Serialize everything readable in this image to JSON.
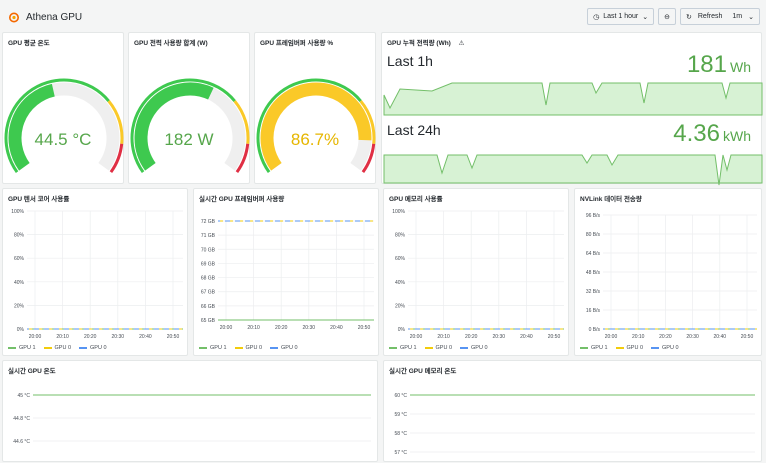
{
  "header": {
    "title": "Athena GPU",
    "time_range": "Last 1 hour",
    "refresh_label": "Refresh",
    "refresh_interval": "1m"
  },
  "colors": {
    "green": "#56a64b",
    "green_fill": "#d7f2d4",
    "yellow": "#f2cc0c",
    "red": "#e02f44",
    "gpu1": "#73bf69",
    "gpu0a": "#f2cc0c",
    "gpu0b": "#5794f2"
  },
  "gauges": [
    {
      "title": "GPU 평균 온도",
      "value_text": "44.5 °C",
      "fraction": 0.45,
      "color": "#3ec94f"
    },
    {
      "title": "GPU 전력 사용량 합계 (W)",
      "value_text": "182 W",
      "fraction": 0.6,
      "color": "#3ec94f"
    },
    {
      "title": "GPU 프레임버퍼 사용량 %",
      "value_text": "86.7%",
      "fraction": 0.867,
      "color": "#fac928"
    }
  ],
  "energy": {
    "title": "GPU 누적 전력량 (Wh)",
    "rows": [
      {
        "label": "Last 1h",
        "value": "181",
        "unit": "Wh"
      },
      {
        "label": "Last 24h",
        "value": "4.36",
        "unit": "kWh"
      }
    ]
  },
  "legend_labels": [
    "GPU 1",
    "GPU 0",
    "GPU 0"
  ],
  "chart_data": [
    {
      "type": "line",
      "title": "GPU 텐서 코어 사용률",
      "x_ticks": [
        "20:00",
        "20:10",
        "20:20",
        "20:30",
        "20:40",
        "20:50"
      ],
      "y_ticks": [
        "0%",
        "20%",
        "40%",
        "60%",
        "80%",
        "100%"
      ],
      "ylim": [
        0,
        100
      ],
      "series": [
        {
          "name": "GPU 1",
          "values": [
            0,
            0,
            0,
            0,
            0,
            0
          ]
        },
        {
          "name": "GPU 0",
          "values": [
            0,
            0,
            0,
            0,
            0,
            0
          ]
        },
        {
          "name": "GPU 0",
          "values": [
            0,
            0,
            0,
            0,
            0,
            0
          ]
        }
      ]
    },
    {
      "type": "line",
      "title": "실시간 GPU 프레임버퍼 사용량",
      "x_ticks": [
        "20:00",
        "20:10",
        "20:20",
        "20:30",
        "20:40",
        "20:50"
      ],
      "y_ticks": [
        "65 GB",
        "66 GB",
        "67 GB",
        "68 GB",
        "69 GB",
        "70 GB",
        "71 GB",
        "72 GB"
      ],
      "ylim": [
        65,
        72
      ],
      "series": [
        {
          "name": "GPU 1",
          "values": [
            65,
            65,
            65,
            65,
            65,
            65
          ]
        },
        {
          "name": "GPU 0",
          "values": [
            72,
            72,
            72,
            72,
            72,
            72
          ]
        },
        {
          "name": "GPU 0",
          "values": [
            72,
            72,
            72,
            72,
            72,
            72
          ]
        }
      ]
    },
    {
      "type": "line",
      "title": "GPU 메모리 사용률",
      "x_ticks": [
        "20:00",
        "20:10",
        "20:20",
        "20:30",
        "20:40",
        "20:50"
      ],
      "y_ticks": [
        "0%",
        "20%",
        "40%",
        "60%",
        "80%",
        "100%"
      ],
      "ylim": [
        0,
        100
      ],
      "series": [
        {
          "name": "GPU 1",
          "values": [
            0,
            0,
            0,
            0,
            0,
            0
          ]
        },
        {
          "name": "GPU 0",
          "values": [
            0,
            0,
            0,
            0,
            0,
            0
          ]
        },
        {
          "name": "GPU 0",
          "values": [
            0,
            0,
            0,
            0,
            0,
            0
          ]
        }
      ]
    },
    {
      "type": "line",
      "title": "NVLink 데이터 전송량",
      "x_ticks": [
        "20:00",
        "20:10",
        "20:20",
        "20:30",
        "20:40",
        "20:50"
      ],
      "y_ticks": [
        "0 B/s",
        "16 B/s",
        "32 B/s",
        "48 B/s",
        "64 B/s",
        "80 B/s",
        "96 B/s"
      ],
      "ylim": [
        0,
        96
      ],
      "series": [
        {
          "name": "GPU 1",
          "values": [
            0,
            0,
            0,
            0,
            0,
            0
          ]
        },
        {
          "name": "GPU 0",
          "values": [
            0,
            0,
            0,
            0,
            0,
            0
          ]
        },
        {
          "name": "GPU 0",
          "values": [
            0,
            0,
            0,
            0,
            0,
            0
          ]
        }
      ]
    },
    {
      "type": "line",
      "title": "실시간 GPU 온도",
      "y_ticks": [
        "44.6 °C",
        "44.8 °C",
        "45 °C"
      ],
      "ylim": [
        44.6,
        45
      ],
      "series": [
        {
          "values": [
            45,
            45,
            45,
            45,
            45,
            45
          ]
        }
      ]
    },
    {
      "type": "line",
      "title": "실시간 GPU 메모리 온도",
      "y_ticks": [
        "57 °C",
        "58 °C",
        "59 °C",
        "60 °C"
      ],
      "ylim": [
        57,
        60
      ],
      "series": [
        {
          "values": [
            60,
            60,
            60,
            60,
            60,
            60
          ]
        }
      ]
    }
  ]
}
